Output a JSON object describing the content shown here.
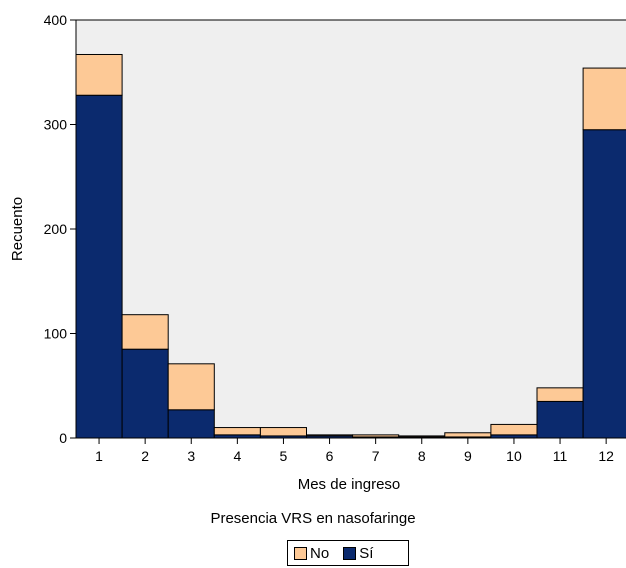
{
  "chart_data": {
    "type": "bar",
    "stacked": true,
    "categories": [
      "1",
      "2",
      "3",
      "4",
      "5",
      "6",
      "7",
      "8",
      "9",
      "10",
      "11",
      "12"
    ],
    "series": [
      {
        "name": "Sí",
        "color": "#0b2a6e",
        "values": [
          328,
          85,
          27,
          3,
          2,
          2,
          1,
          1,
          1,
          3,
          35,
          295
        ]
      },
      {
        "name": "No",
        "color": "#fdc996",
        "values": [
          39,
          33,
          44,
          7,
          8,
          1,
          2,
          1,
          4,
          10,
          13,
          59
        ]
      }
    ],
    "xlabel": "Mes de ingreso",
    "ylabel": "Recuento",
    "ylim": [
      0,
      400
    ],
    "yticks": [
      0,
      100,
      200,
      300,
      400
    ],
    "plot_background": "#efefef",
    "grid": false,
    "legend": {
      "title": "Presencia VRS en nasofaringe",
      "placement": "bottom-center",
      "entries": [
        "No",
        "Sí"
      ]
    }
  }
}
